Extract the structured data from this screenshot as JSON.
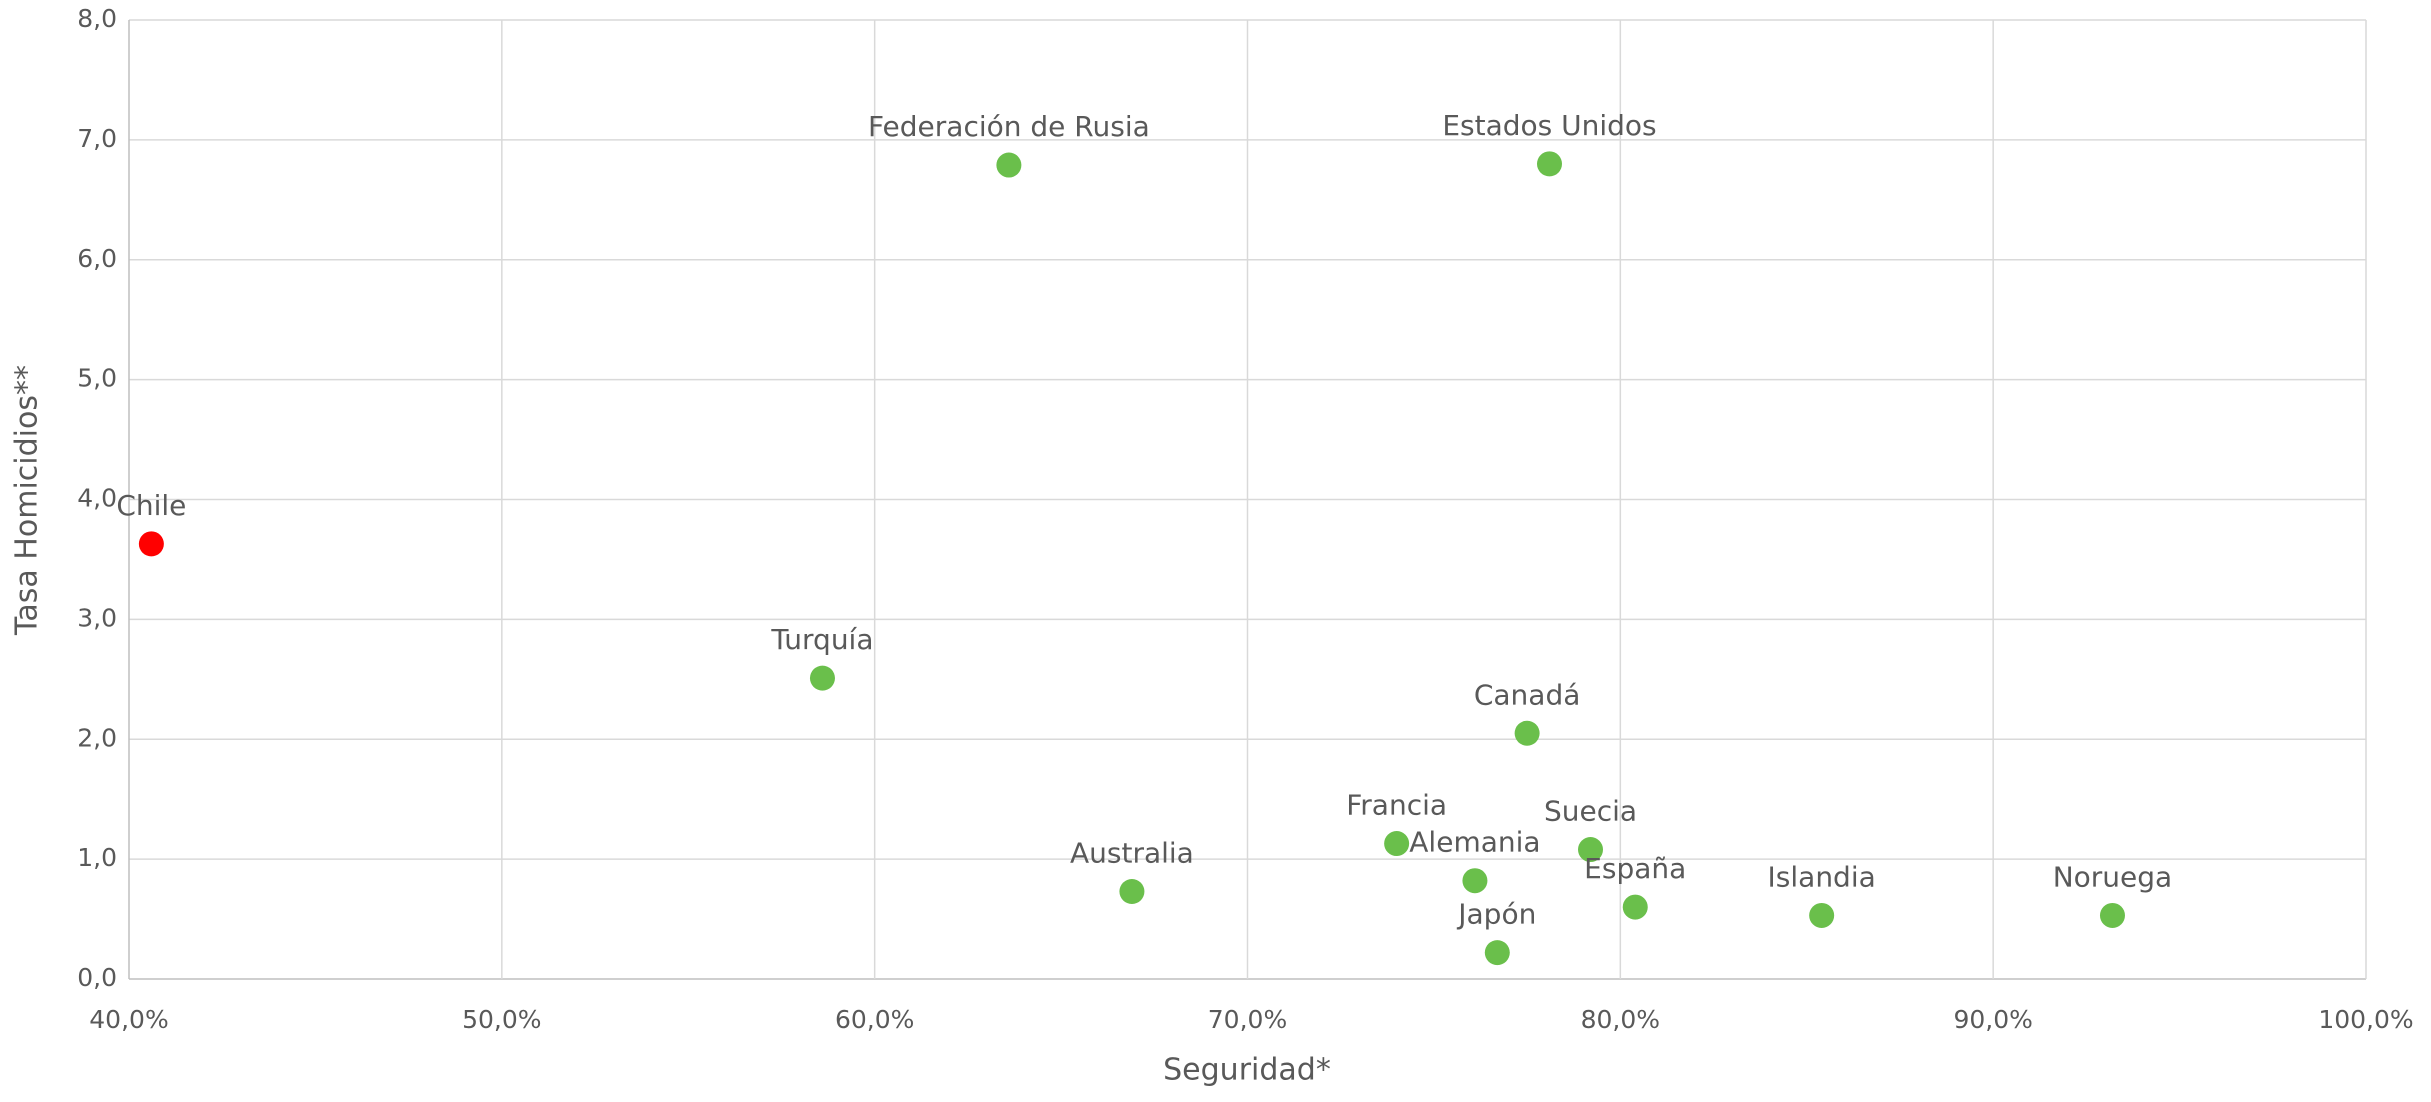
{
  "chart_data": {
    "type": "scatter",
    "x_label": "Seguridad*",
    "y_label": "Tasa Homicidios**",
    "labels": [
      "Chile",
      "Federación de Rusia",
      "Estados Unidos",
      "Turquía",
      "Canadá",
      "Australia",
      "Francia",
      "Alemania",
      "Suecia",
      "España",
      "Japón",
      "Islandia",
      "Noruega"
    ],
    "x": [
      40.6,
      63.6,
      78.1,
      58.6,
      77.5,
      66.9,
      74.0,
      76.1,
      79.2,
      80.4,
      76.7,
      85.4,
      93.2
    ],
    "values": [
      3.63,
      6.79,
      6.8,
      2.51,
      2.05,
      0.73,
      1.13,
      0.82,
      1.08,
      0.6,
      0.22,
      0.53,
      0.53
    ],
    "colors": [
      "#ff0000",
      "#6abf4b",
      "#6abf4b",
      "#6abf4b",
      "#6abf4b",
      "#6abf4b",
      "#6abf4b",
      "#6abf4b",
      "#6abf4b",
      "#6abf4b",
      "#6abf4b",
      "#6abf4b",
      "#6abf4b"
    ],
    "xlim": [
      40,
      100
    ],
    "xticks": [
      {
        "value": 40,
        "label": "40,0%"
      },
      {
        "value": 50,
        "label": "50,0%"
      },
      {
        "value": 60,
        "label": "60,0%"
      },
      {
        "value": 70,
        "label": "70,0%"
      },
      {
        "value": 80,
        "label": "80,0%"
      },
      {
        "value": 90,
        "label": "90,0%"
      },
      {
        "value": 100,
        "label": "100,0%"
      }
    ],
    "ylim": [
      0,
      8
    ],
    "yticks": [
      {
        "value": 0,
        "label": "0,0"
      },
      {
        "value": 1,
        "label": "1,0"
      },
      {
        "value": 2,
        "label": "2,0"
      },
      {
        "value": 3,
        "label": "3,0"
      },
      {
        "value": 4,
        "label": "4,0"
      },
      {
        "value": 5,
        "label": "5,0"
      },
      {
        "value": 6,
        "label": "6,0"
      },
      {
        "value": 7,
        "label": "7,0"
      },
      {
        "value": 8,
        "label": "8,0"
      }
    ],
    "grid": true
  }
}
